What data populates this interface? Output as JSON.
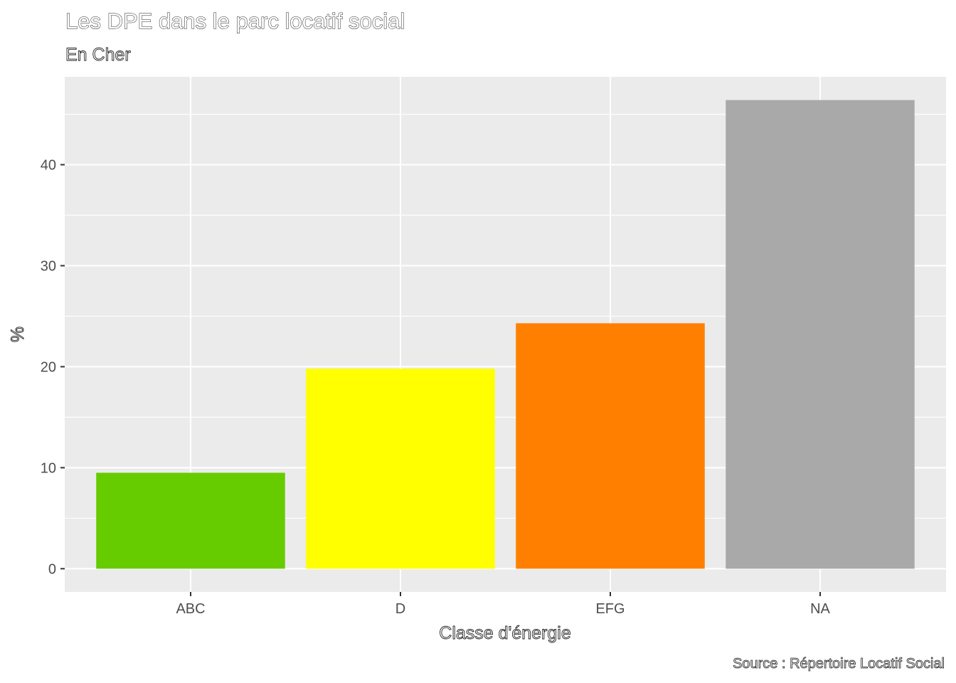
{
  "chart_data": {
    "type": "bar",
    "title": "Les DPE dans le parc locatif social",
    "subtitle": "En Cher",
    "xlabel": "Classe d'énergie",
    "ylabel": "%",
    "caption": "Source : Répertoire Locatif Social",
    "categories": [
      "ABC",
      "D",
      "EFG",
      "NA"
    ],
    "values": [
      9.5,
      19.8,
      24.3,
      46.4
    ],
    "colors": [
      "#66cc00",
      "#ffff00",
      "#ff8000",
      "#a9a9a9"
    ],
    "ylim": [
      -2.3,
      48.7
    ],
    "yticks": [
      0,
      10,
      20,
      30,
      40
    ],
    "ytick_labels": [
      "0",
      "10",
      "20",
      "30",
      "40"
    ],
    "grid": true,
    "panel_background": "#ebebeb",
    "legend": "none"
  }
}
